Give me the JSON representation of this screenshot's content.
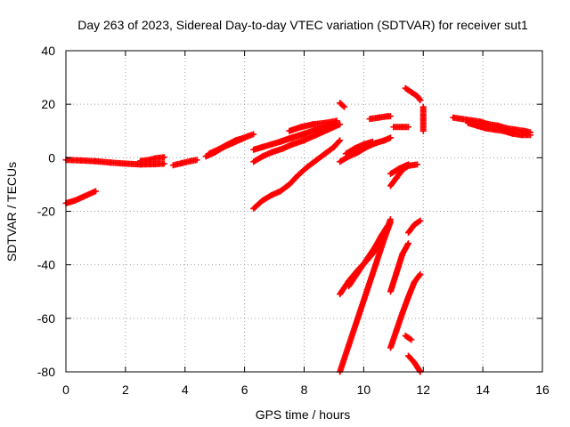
{
  "chart_data": {
    "type": "scatter",
    "title": "Day 263 of 2023, Sidereal Day-to-day VTEC variation (SDTVAR) for receiver sut1",
    "xlabel": "GPS time / hours",
    "ylabel": "SDTVAR / TECUs",
    "xlim": [
      0,
      16
    ],
    "ylim": [
      -80,
      40
    ],
    "xticks": [
      "0",
      "2",
      "4",
      "6",
      "8",
      "10",
      "12",
      "14",
      "16"
    ],
    "yticks": [
      "-80",
      "-60",
      "-40",
      "-20",
      "0",
      "20",
      "40"
    ],
    "grid": true,
    "marker": "plus",
    "color": "#ff0000",
    "tracks": [
      [
        [
          0.0,
          -0.8
        ],
        [
          0.5,
          -1.0
        ],
        [
          1.0,
          -1.3
        ],
        [
          1.5,
          -1.8
        ],
        [
          2.0,
          -2.2
        ],
        [
          2.5,
          -2.5
        ],
        [
          3.0,
          -2.4
        ],
        [
          3.3,
          -2.2
        ]
      ],
      [
        [
          2.5,
          -1.2
        ],
        [
          2.8,
          -0.8
        ],
        [
          3.0,
          -0.2
        ],
        [
          3.3,
          0.2
        ]
      ],
      [
        [
          3.6,
          -2.8
        ],
        [
          3.9,
          -2.0
        ],
        [
          4.2,
          -1.2
        ],
        [
          4.4,
          -0.8
        ]
      ],
      [
        [
          0.0,
          -17.0
        ],
        [
          0.3,
          -16.0
        ],
        [
          0.6,
          -14.5
        ],
        [
          1.0,
          -12.5
        ]
      ],
      [
        [
          4.7,
          0.5
        ],
        [
          5.0,
          2.0
        ],
        [
          5.3,
          4.0
        ],
        [
          5.6,
          5.5
        ],
        [
          5.9,
          7.0
        ],
        [
          6.1,
          8.0
        ],
        [
          6.3,
          8.8
        ]
      ],
      [
        [
          4.8,
          1.5
        ],
        [
          5.1,
          3.0
        ],
        [
          5.4,
          4.8
        ],
        [
          5.7,
          6.5
        ],
        [
          6.0,
          7.5
        ]
      ],
      [
        [
          6.3,
          3.0
        ],
        [
          6.6,
          4.0
        ],
        [
          6.9,
          5.0
        ],
        [
          7.2,
          6.0
        ],
        [
          7.5,
          7.2
        ],
        [
          7.8,
          8.2
        ],
        [
          8.1,
          9.0
        ]
      ],
      [
        [
          7.5,
          10.0
        ],
        [
          7.9,
          11.5
        ],
        [
          8.3,
          12.5
        ],
        [
          8.7,
          13.0
        ],
        [
          9.1,
          13.8
        ]
      ],
      [
        [
          7.2,
          6.0
        ],
        [
          7.6,
          7.5
        ],
        [
          8.0,
          9.0
        ],
        [
          8.4,
          10.5
        ],
        [
          8.8,
          11.5
        ],
        [
          9.1,
          12.5
        ]
      ],
      [
        [
          6.3,
          -1.5
        ],
        [
          6.6,
          0.5
        ],
        [
          6.9,
          2.0
        ],
        [
          7.3,
          3.5
        ],
        [
          7.6,
          5.0
        ],
        [
          8.0,
          6.5
        ],
        [
          8.4,
          8.5
        ],
        [
          8.8,
          10.5
        ],
        [
          9.2,
          12.5
        ]
      ],
      [
        [
          6.3,
          -19.0
        ],
        [
          6.6,
          -16.0
        ],
        [
          6.9,
          -14.0
        ],
        [
          7.2,
          -12.5
        ],
        [
          7.5,
          -10.0
        ],
        [
          7.8,
          -6.5
        ],
        [
          8.1,
          -3.5
        ],
        [
          8.4,
          -1.0
        ],
        [
          8.7,
          1.5
        ],
        [
          9.0,
          4.0
        ],
        [
          9.2,
          6.5
        ]
      ],
      [
        [
          9.2,
          20.5
        ],
        [
          9.35,
          19.0
        ]
      ],
      [
        [
          9.2,
          -1.5
        ],
        [
          9.5,
          0.5
        ],
        [
          9.8,
          2.0
        ],
        [
          10.1,
          4.0
        ],
        [
          10.4,
          5.5
        ],
        [
          10.7,
          6.5
        ],
        [
          10.9,
          7.5
        ]
      ],
      [
        [
          9.4,
          1.5
        ],
        [
          9.7,
          3.5
        ],
        [
          10.0,
          5.0
        ],
        [
          10.3,
          6.0
        ]
      ],
      [
        [
          10.2,
          14.5
        ],
        [
          10.5,
          15.0
        ],
        [
          10.8,
          15.5
        ],
        [
          10.9,
          15.5
        ]
      ],
      [
        [
          11.0,
          11.5
        ],
        [
          11.3,
          11.5
        ],
        [
          11.5,
          11.5
        ]
      ],
      [
        [
          11.4,
          26.0
        ],
        [
          11.6,
          24.5
        ],
        [
          11.8,
          23.0
        ],
        [
          11.9,
          21.5
        ]
      ],
      [
        [
          12.0,
          19.0
        ],
        [
          12.0,
          14.5
        ],
        [
          12.0,
          10.0
        ]
      ],
      [
        [
          10.9,
          -10.5
        ],
        [
          11.1,
          -7.5
        ],
        [
          11.3,
          -4.5
        ],
        [
          11.5,
          -3.0
        ],
        [
          11.8,
          -2.5
        ]
      ],
      [
        [
          10.9,
          -6.0
        ],
        [
          11.2,
          -4.0
        ],
        [
          11.5,
          -2.5
        ]
      ],
      [
        [
          9.2,
          -51.0
        ],
        [
          9.5,
          -46.0
        ],
        [
          9.8,
          -42.0
        ],
        [
          10.1,
          -38.5
        ],
        [
          10.4,
          -34.5
        ],
        [
          10.6,
          -30.0
        ],
        [
          10.8,
          -26.0
        ],
        [
          10.9,
          -23.0
        ]
      ],
      [
        [
          9.5,
          -48.0
        ],
        [
          9.8,
          -43.0
        ],
        [
          10.1,
          -38.0
        ],
        [
          10.4,
          -33.0
        ],
        [
          10.6,
          -29.0
        ],
        [
          10.8,
          -25.5
        ]
      ],
      [
        [
          9.2,
          -80.0
        ],
        [
          9.5,
          -70.0
        ],
        [
          9.8,
          -60.0
        ],
        [
          10.1,
          -50.0
        ],
        [
          10.4,
          -40.0
        ],
        [
          10.7,
          -30.0
        ],
        [
          10.9,
          -24.0
        ]
      ],
      [
        [
          10.9,
          -50.0
        ],
        [
          11.1,
          -43.0
        ],
        [
          11.3,
          -36.0
        ],
        [
          11.5,
          -32.0
        ]
      ],
      [
        [
          11.5,
          -28.0
        ],
        [
          11.7,
          -25.0
        ],
        [
          11.9,
          -23.5
        ]
      ],
      [
        [
          10.9,
          -71.0
        ],
        [
          11.1,
          -64.5
        ],
        [
          11.3,
          -58.0
        ],
        [
          11.5,
          -52.0
        ],
        [
          11.7,
          -46.5
        ],
        [
          11.9,
          -43.5
        ]
      ],
      [
        [
          11.4,
          -66.5
        ],
        [
          11.6,
          -68.0
        ]
      ],
      [
        [
          11.5,
          -74.0
        ],
        [
          11.7,
          -76.5
        ],
        [
          11.9,
          -80.0
        ]
      ],
      [
        [
          13.0,
          15.0
        ],
        [
          13.3,
          14.5
        ],
        [
          13.6,
          14.0
        ],
        [
          13.9,
          13.5
        ],
        [
          14.2,
          12.5
        ],
        [
          14.5,
          12.0
        ],
        [
          14.8,
          11.0
        ],
        [
          15.1,
          10.5
        ],
        [
          15.4,
          10.0
        ],
        [
          15.6,
          9.5
        ]
      ],
      [
        [
          13.5,
          13.0
        ],
        [
          13.8,
          12.0
        ],
        [
          14.1,
          11.0
        ],
        [
          14.4,
          10.5
        ],
        [
          14.7,
          10.0
        ],
        [
          15.0,
          9.0
        ],
        [
          15.3,
          8.5
        ],
        [
          15.6,
          8.5
        ]
      ]
    ]
  }
}
